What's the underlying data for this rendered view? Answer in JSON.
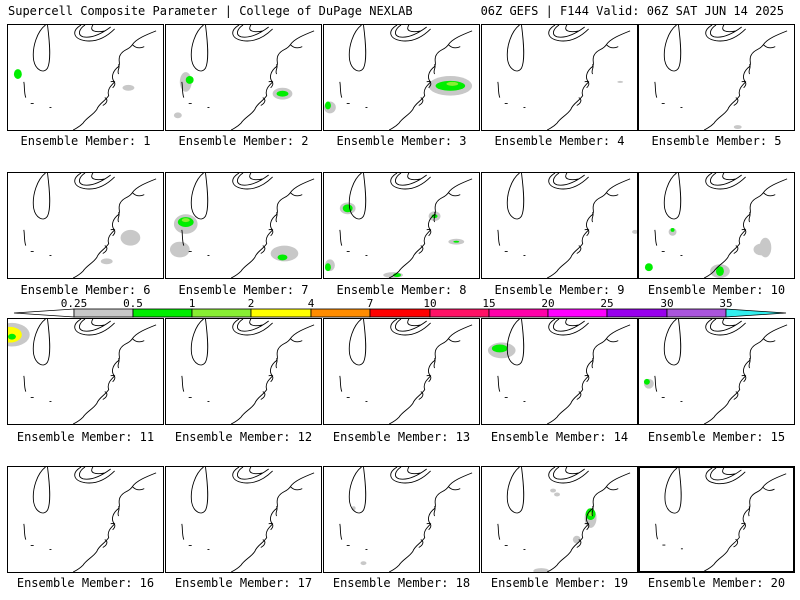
{
  "header": {
    "title_left": "Supercell Composite Parameter | College of DuPage NEXLAB",
    "title_right": "06Z GEFS | F144 Valid: 06Z SAT JUN 14 2025"
  },
  "panels": [
    {
      "label": "Ensemble Member: 1",
      "selected": false
    },
    {
      "label": "Ensemble Member: 2",
      "selected": false
    },
    {
      "label": "Ensemble Member: 3",
      "selected": false
    },
    {
      "label": "Ensemble Member: 4",
      "selected": false
    },
    {
      "label": "Ensemble Member: 5",
      "selected": false
    },
    {
      "label": "Ensemble Member: 6",
      "selected": false
    },
    {
      "label": "Ensemble Member: 7",
      "selected": false
    },
    {
      "label": "Ensemble Member: 8",
      "selected": false
    },
    {
      "label": "Ensemble Member: 9",
      "selected": false
    },
    {
      "label": "Ensemble Member: 10",
      "selected": false
    },
    {
      "label": "Ensemble Member: 11",
      "selected": false
    },
    {
      "label": "Ensemble Member: 12",
      "selected": false
    },
    {
      "label": "Ensemble Member: 13",
      "selected": false
    },
    {
      "label": "Ensemble Member: 14",
      "selected": false
    },
    {
      "label": "Ensemble Member: 15",
      "selected": false
    },
    {
      "label": "Ensemble Member: 16",
      "selected": false
    },
    {
      "label": "Ensemble Member: 17",
      "selected": false
    },
    {
      "label": "Ensemble Member: 18",
      "selected": false
    },
    {
      "label": "Ensemble Member: 19",
      "selected": false
    },
    {
      "label": "Ensemble Member: 20",
      "selected": true
    }
  ],
  "colorbar": {
    "ticks": [
      "0.25",
      "0.5",
      "1",
      "2",
      "4",
      "7",
      "10",
      "15",
      "20",
      "25",
      "30",
      "35"
    ],
    "colors": [
      "#c8c8c8",
      "#00ee00",
      "#88ee33",
      "#ffff00",
      "#ff8c00",
      "#ff0000",
      "#ff1166",
      "#ff00aa",
      "#ff00ff",
      "#9900ee",
      "#aa55dd",
      "#33eeee"
    ]
  }
}
